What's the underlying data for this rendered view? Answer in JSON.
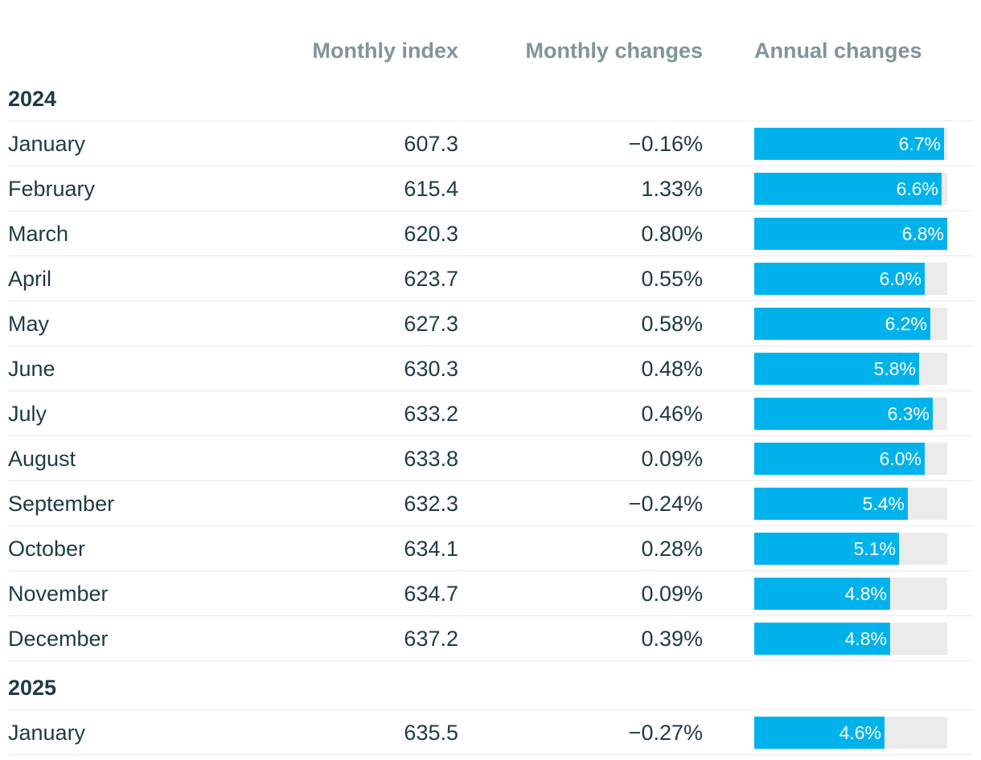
{
  "headers": {
    "monthly_index": "Monthly index",
    "monthly_changes": "Monthly changes",
    "annual_changes": "Annual changes"
  },
  "colors": {
    "bar": "#00b2ec",
    "track": "#ebebeb",
    "header_text": "#7f959b",
    "body_text": "#1d3b44"
  },
  "chart_data": {
    "type": "table",
    "columns": [
      "Monthly index",
      "Monthly changes",
      "Annual changes"
    ],
    "bar_max": 6.8,
    "groups": [
      {
        "year": "2024",
        "rows": [
          {
            "month": "January",
            "index": "607.3",
            "monthly_change": "−0.16%",
            "annual_change": "6.7%",
            "annual_value": 6.7
          },
          {
            "month": "February",
            "index": "615.4",
            "monthly_change": "1.33%",
            "annual_change": "6.6%",
            "annual_value": 6.6
          },
          {
            "month": "March",
            "index": "620.3",
            "monthly_change": "0.80%",
            "annual_change": "6.8%",
            "annual_value": 6.8
          },
          {
            "month": "April",
            "index": "623.7",
            "monthly_change": "0.55%",
            "annual_change": "6.0%",
            "annual_value": 6.0
          },
          {
            "month": "May",
            "index": "627.3",
            "monthly_change": "0.58%",
            "annual_change": "6.2%",
            "annual_value": 6.2
          },
          {
            "month": "June",
            "index": "630.3",
            "monthly_change": "0.48%",
            "annual_change": "5.8%",
            "annual_value": 5.8
          },
          {
            "month": "July",
            "index": "633.2",
            "monthly_change": "0.46%",
            "annual_change": "6.3%",
            "annual_value": 6.3
          },
          {
            "month": "August",
            "index": "633.8",
            "monthly_change": "0.09%",
            "annual_change": "6.0%",
            "annual_value": 6.0
          },
          {
            "month": "September",
            "index": "632.3",
            "monthly_change": "−0.24%",
            "annual_change": "5.4%",
            "annual_value": 5.4
          },
          {
            "month": "October",
            "index": "634.1",
            "monthly_change": "0.28%",
            "annual_change": "5.1%",
            "annual_value": 5.1
          },
          {
            "month": "November",
            "index": "634.7",
            "monthly_change": "0.09%",
            "annual_change": "4.8%",
            "annual_value": 4.8
          },
          {
            "month": "December",
            "index": "637.2",
            "monthly_change": "0.39%",
            "annual_change": "4.8%",
            "annual_value": 4.8
          }
        ]
      },
      {
        "year": "2025",
        "rows": [
          {
            "month": "January",
            "index": "635.5",
            "monthly_change": "−0.27%",
            "annual_change": "4.6%",
            "annual_value": 4.6
          }
        ]
      }
    ]
  }
}
